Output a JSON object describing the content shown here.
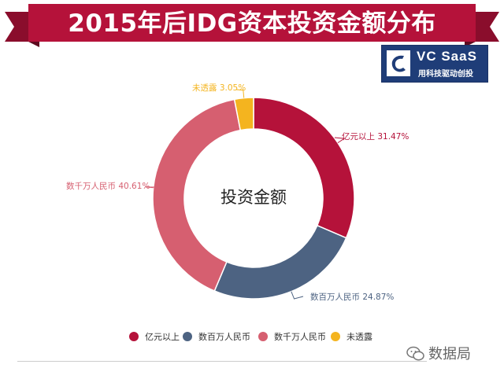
{
  "header": {
    "title": "2015年后IDG资本投资金额分布"
  },
  "logo": {
    "name": "VC SaaS",
    "subtitle": "用科技驱动创投"
  },
  "watermark": {
    "text": "数据局",
    "icon": "wechat-icon"
  },
  "colors": {
    "banner": "#b5123a",
    "banner_dark": "#8a0d2c",
    "logo_bg": "#1f3d78"
  },
  "chart_data": {
    "type": "pie",
    "style": "donut",
    "center_label": "投资金额",
    "legend_position": "bottom",
    "series": [
      {
        "name": "投资金额",
        "slices": [
          {
            "label": "亿元以上",
            "value": 31.47,
            "display": "亿元以上 31.47%",
            "color": "#b5123a"
          },
          {
            "label": "数百万人民币",
            "value": 24.87,
            "display": "数百万人民币 24.87%",
            "color": "#4d6382"
          },
          {
            "label": "数千万人民币",
            "value": 40.61,
            "display": "数千万人民币 40.61%",
            "color": "#d65f70"
          },
          {
            "label": "未透露",
            "value": 3.05,
            "display": "未透露 3.05%",
            "color": "#f4b41f"
          }
        ]
      }
    ]
  }
}
